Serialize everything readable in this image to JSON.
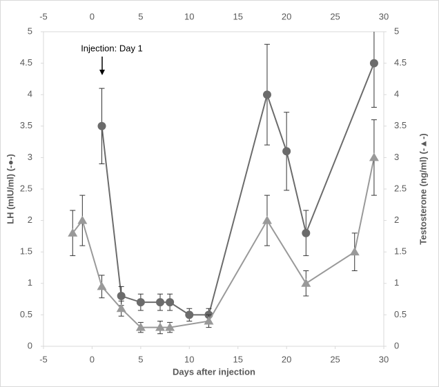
{
  "chart_data": {
    "type": "line",
    "annotation": "Injection: Day 1",
    "xlabel": "Days after injection",
    "ylabel": "LH (mIU/ml) (-●-)",
    "y2label": "Testosterone (ng/ml) (-▲-)",
    "xlim": [
      -5,
      30
    ],
    "xticks": [
      -5,
      0,
      5,
      10,
      15,
      20,
      25,
      30
    ],
    "ylim": [
      0,
      5
    ],
    "yticks": [
      0,
      0.5,
      1,
      1.5,
      2,
      2.5,
      3,
      3.5,
      4,
      4.5,
      5
    ],
    "y2lim": [
      0,
      5
    ],
    "y2ticks": [
      0,
      0.5,
      1,
      1.5,
      2,
      2.5,
      3,
      3.5,
      4,
      4.5,
      5
    ],
    "series": [
      {
        "name": "LH",
        "color": "#6b6b6b",
        "marker": "circle",
        "x": [
          1,
          3,
          5,
          7,
          8,
          10,
          12,
          18,
          20,
          22,
          29
        ],
        "values": [
          3.5,
          0.8,
          0.7,
          0.7,
          0.7,
          0.5,
          0.5,
          4.0,
          3.1,
          1.8,
          4.5
        ],
        "errors": [
          0.6,
          0.15,
          0.13,
          0.13,
          0.13,
          0.1,
          0.1,
          0.8,
          0.62,
          0.36,
          0.7
        ]
      },
      {
        "name": "Testosterone",
        "color": "#999999",
        "marker": "triangle",
        "axis": "y2",
        "x": [
          -2,
          -1,
          1,
          3,
          5,
          7,
          8,
          12,
          18,
          22,
          27,
          29
        ],
        "values": [
          1.8,
          2.0,
          0.95,
          0.6,
          0.3,
          0.3,
          0.3,
          0.4,
          2.0,
          1.0,
          1.5,
          3.0
        ],
        "errors": [
          0.36,
          0.4,
          0.18,
          0.12,
          0.08,
          0.1,
          0.08,
          0.1,
          0.4,
          0.2,
          0.3,
          0.6
        ]
      }
    ]
  }
}
